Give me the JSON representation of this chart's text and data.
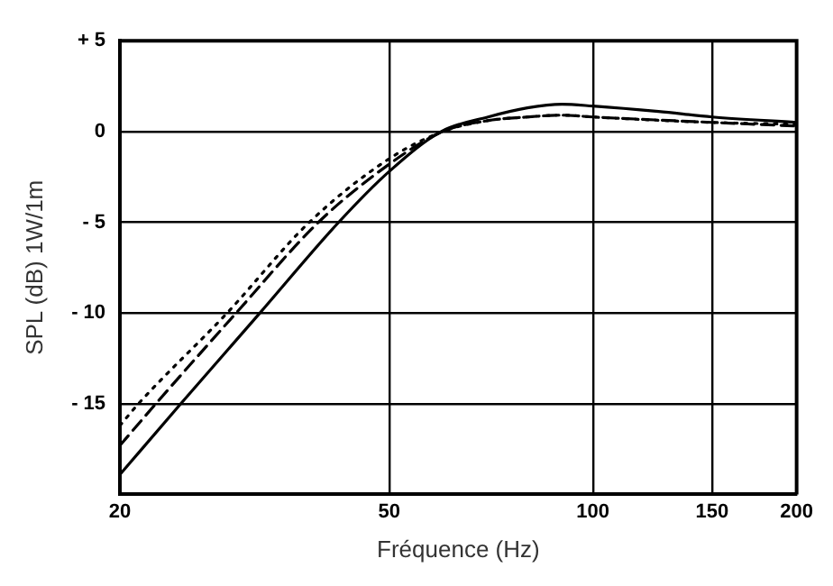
{
  "chart_data": {
    "type": "line",
    "xlabel": "Fréquence (Hz)",
    "ylabel": "SPL (dB) 1W/1m",
    "log": "x",
    "grid": true,
    "marker": "none",
    "legend": false,
    "xlim": [
      20,
      200
    ],
    "xticks": [
      20,
      50,
      100,
      150,
      200
    ],
    "ylim": [
      -20,
      5
    ],
    "yticks": [
      {
        "value": 5,
        "label": "+ 5"
      },
      0,
      {
        "value": -5,
        "label": "- 5"
      },
      {
        "value": -10,
        "label": "- 10"
      },
      {
        "value": -15,
        "label": "- 15"
      }
    ],
    "series": [
      {
        "color": "#000000",
        "line_style": "solid",
        "x": [
          20,
          24.6,
          32.2,
          42.1,
          50,
          59.7,
          70,
          80,
          90,
          100,
          125,
          150,
          200
        ],
        "values": [
          -18.9,
          -15,
          -10,
          -5,
          -2.2,
          0,
          0.8,
          1.3,
          1.5,
          1.4,
          1.1,
          0.8,
          0.5
        ]
      },
      {
        "color": "#000000",
        "line_style": "dashed",
        "x": [
          20,
          22.6,
          29.7,
          39.3,
          50,
          60,
          70,
          80,
          90,
          100,
          150,
          200
        ],
        "values": [
          -17.3,
          -15,
          -10,
          -5,
          -1.8,
          0,
          0.6,
          0.8,
          0.9,
          0.8,
          0.5,
          0.3
        ]
      },
      {
        "color": "#000000",
        "line_style": "dotted",
        "x": [
          20,
          21.3,
          28.8,
          38.1,
          50,
          60,
          70,
          80,
          90,
          100,
          150,
          200
        ],
        "values": [
          -16.2,
          -15,
          -10,
          -5,
          -1.5,
          0,
          0.6,
          0.8,
          0.9,
          0.8,
          0.5,
          0.4
        ]
      }
    ]
  }
}
